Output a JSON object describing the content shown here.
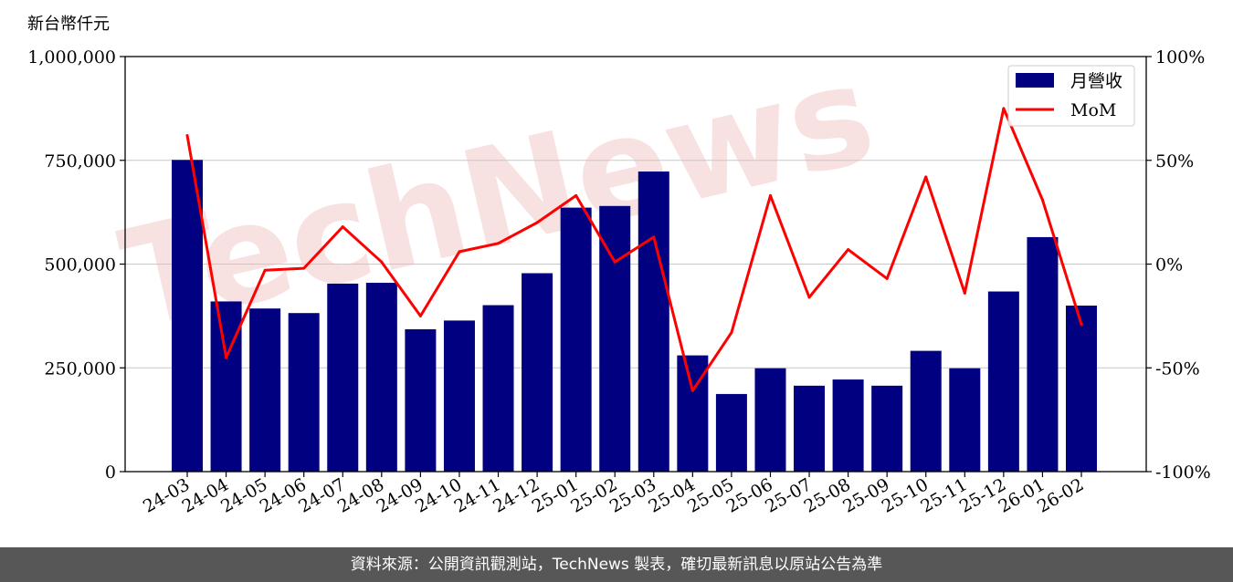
{
  "unit_label": "新台幣仟元",
  "watermark_text": "TechNews",
  "footer_text": "資料來源：公開資訊觀測站，TechNews 製表，確切最新訊息以原站公告為準",
  "colors": {
    "bar": "#000080",
    "line": "#ff0000",
    "footer_bg": "#575757",
    "watermark": "#f1c9c9"
  },
  "chart_data": {
    "type": "bar",
    "categories": [
      "24-03",
      "24-04",
      "24-05",
      "24-06",
      "24-07",
      "24-08",
      "24-09",
      "24-10",
      "24-11",
      "24-12",
      "25-01",
      "25-02",
      "25-03",
      "25-04",
      "25-05",
      "25-06",
      "25-07",
      "25-08",
      "25-09",
      "25-10",
      "25-11",
      "25-12",
      "26-01",
      "26-02"
    ],
    "series": [
      {
        "name": "月營收",
        "type": "bar",
        "axis": "left",
        "values": [
          751000,
          410000,
          393000,
          382000,
          453000,
          455000,
          343000,
          364000,
          401000,
          478000,
          636000,
          640000,
          723000,
          280000,
          187000,
          249000,
          207000,
          222000,
          207000,
          291000,
          249000,
          434000,
          565000,
          400000
        ]
      },
      {
        "name": "MoM",
        "type": "line",
        "axis": "right",
        "values": [
          62,
          -45,
          -3,
          -2,
          18,
          1,
          -25,
          6,
          10,
          20,
          33,
          1,
          13,
          -61,
          -33,
          33,
          -16,
          7,
          -7,
          42,
          -14,
          75,
          31,
          -29
        ]
      }
    ],
    "ylim_left": [
      0,
      1000000
    ],
    "ylim_right": [
      -100,
      100
    ],
    "yticks_left": [
      "0",
      "250,000",
      "500,000",
      "750,000",
      "1,000,000"
    ],
    "yticks_right": [
      "-100%",
      "-50%",
      "0%",
      "50%",
      "100%"
    ],
    "grid": true,
    "legend": "top-right"
  }
}
